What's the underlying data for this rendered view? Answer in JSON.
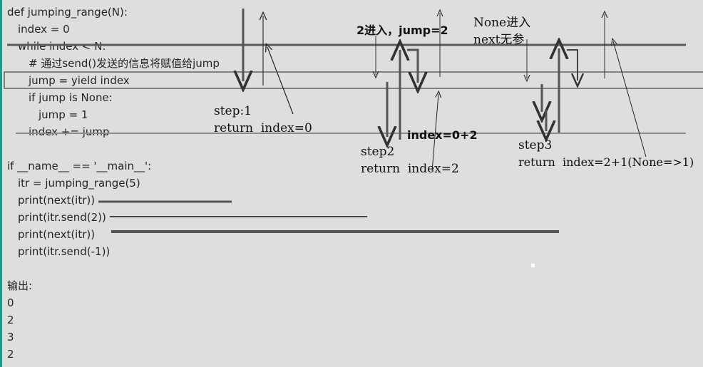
{
  "code": {
    "lines": [
      "def jumping_range(N):",
      "index = 0",
      "while index < N:",
      "# 通过send()发送的信息将赋值给jump",
      "jump = yield index",
      "if jump is None:",
      "jump = 1",
      "index += jump",
      "if __name__ == '__main__':",
      "itr = jumping_range(5)",
      "print(next(itr))",
      "print(itr.send(2))",
      "print(next(itr))",
      "print(itr.send(-1))",
      "输出:",
      "0",
      "2",
      "3",
      "2"
    ]
  },
  "annotations": {
    "step1_label": "step:1",
    "step1_return": "return  index=0",
    "send2_label": "2进入，jump=2",
    "index_calc": "index=0+2",
    "step2_label": "step2",
    "step2_return": "return  index=2",
    "none_in": "None进入",
    "next_no_arg": "next无参",
    "step3_label": "step3",
    "step3_return": "return  index=2+1(None=>1)"
  },
  "colors": {
    "background": "#dedede",
    "text": "#262626",
    "ink": "#555555",
    "accent_edge": "#1f9a8a"
  }
}
